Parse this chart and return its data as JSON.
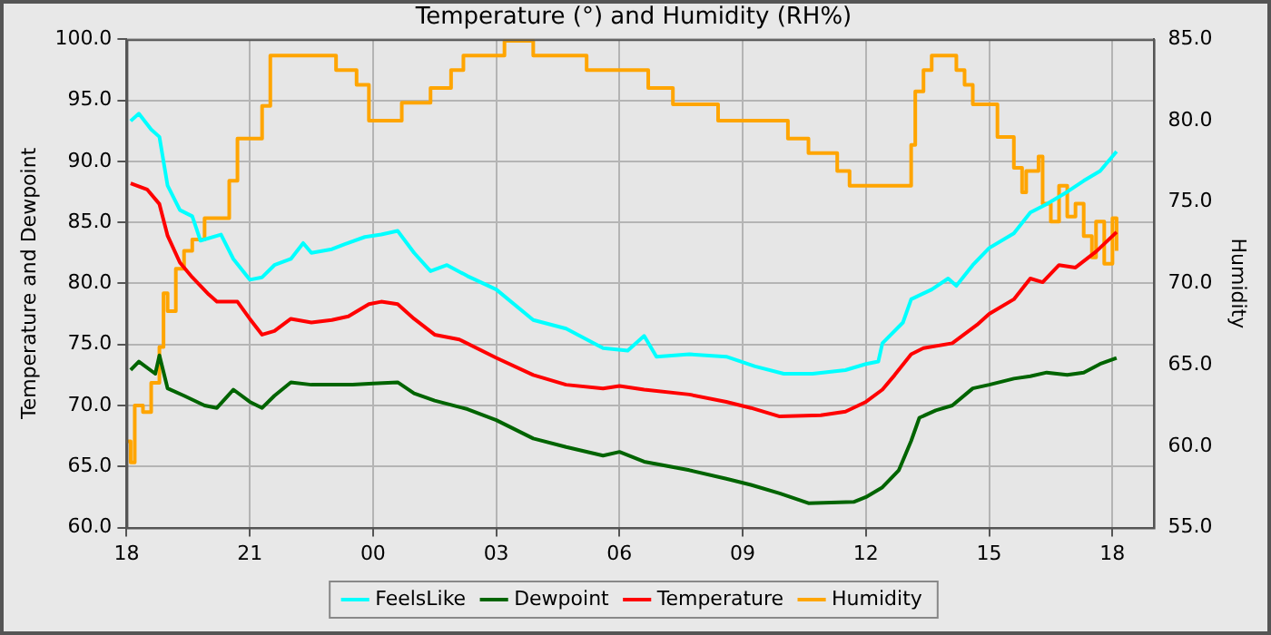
{
  "chart_data": {
    "type": "line",
    "title": "Temperature (°) and Humidity (RH%)",
    "ylabel": "Temperature and Dewpoint",
    "y2label": "Humidity",
    "xlim": [
      18,
      43
    ],
    "xticks": [
      {
        "value": 18,
        "label": "18"
      },
      {
        "value": 21,
        "label": "21"
      },
      {
        "value": 24,
        "label": "00"
      },
      {
        "value": 27,
        "label": "03"
      },
      {
        "value": 30,
        "label": "06"
      },
      {
        "value": 33,
        "label": "09"
      },
      {
        "value": 36,
        "label": "12"
      },
      {
        "value": 39,
        "label": "15"
      },
      {
        "value": 42,
        "label": "18"
      }
    ],
    "ylim": [
      60,
      100
    ],
    "yticks": [
      {
        "value": 60,
        "label": "60.0"
      },
      {
        "value": 65,
        "label": "65.0"
      },
      {
        "value": 70,
        "label": "70.0"
      },
      {
        "value": 75,
        "label": "75.0"
      },
      {
        "value": 80,
        "label": "80.0"
      },
      {
        "value": 85,
        "label": "85.0"
      },
      {
        "value": 90,
        "label": "90.0"
      },
      {
        "value": 95,
        "label": "95.0"
      },
      {
        "value": 100,
        "label": "100.0"
      }
    ],
    "y2lim": [
      55,
      85
    ],
    "y2ticks": [
      {
        "value": 55,
        "label": "55.0"
      },
      {
        "value": 60,
        "label": "60.0"
      },
      {
        "value": 65,
        "label": "65.0"
      },
      {
        "value": 70,
        "label": "70.0"
      },
      {
        "value": 75,
        "label": "75.0"
      },
      {
        "value": 80,
        "label": "80.0"
      },
      {
        "value": 85,
        "label": "85.0"
      }
    ],
    "grid": true,
    "legend": "bottom",
    "marker": "none",
    "line_style": "solid",
    "series": [
      {
        "name": "FeelsLike",
        "color": "#00ffff",
        "x": [
          18.1,
          18.3,
          18.6,
          18.8,
          19.0,
          19.3,
          19.6,
          19.8,
          20.3,
          20.6,
          21.0,
          21.3,
          21.6,
          22.0,
          22.3,
          22.5,
          23.0,
          23.3,
          23.8,
          24.2,
          24.6,
          25.0,
          25.4,
          25.8,
          26.3,
          27.0,
          27.9,
          28.7,
          29.6,
          30.2,
          30.6,
          30.9,
          31.7,
          32.6,
          33.3,
          34.0,
          34.7,
          35.5,
          36.0,
          36.3,
          36.4,
          36.9,
          37.1,
          37.6,
          38.0,
          38.2,
          38.6,
          39.0,
          39.6,
          40.0,
          40.4,
          40.9,
          41.3,
          41.7,
          42.1
        ],
        "values": [
          93.3,
          93.9,
          92.6,
          92,
          88,
          86,
          85.5,
          83.5,
          84,
          82,
          80.3,
          80.5,
          81.5,
          82,
          83.3,
          82.5,
          82.8,
          83.2,
          83.8,
          84,
          84.3,
          82.5,
          81,
          81.5,
          80.6,
          79.5,
          77,
          76.3,
          74.7,
          74.5,
          75.7,
          74,
          74.2,
          74,
          73.2,
          72.6,
          72.6,
          72.9,
          73.4,
          73.6,
          75.1,
          76.8,
          78.7,
          79.5,
          80.4,
          79.8,
          81.5,
          82.9,
          84.1,
          85.8,
          86.5,
          87.5,
          88.4,
          89.2,
          90.8
        ]
      },
      {
        "name": "Dewpoint",
        "color": "#006400",
        "x": [
          18.1,
          18.3,
          18.7,
          18.8,
          19.0,
          19.4,
          19.9,
          20.2,
          20.6,
          21.0,
          21.3,
          21.6,
          22.0,
          22.5,
          23.0,
          23.5,
          24.0,
          24.6,
          25.0,
          25.5,
          26.3,
          27.0,
          27.9,
          28.7,
          29.6,
          30.0,
          30.6,
          31.7,
          32.6,
          33.2,
          33.9,
          34.6,
          35.7,
          36.0,
          36.4,
          36.8,
          37.1,
          37.3,
          37.7,
          38.1,
          38.6,
          39.0,
          39.6,
          40.0,
          40.4,
          40.9,
          41.3,
          41.7,
          42.1
        ],
        "values": [
          72.9,
          73.6,
          72.6,
          74.1,
          71.4,
          70.8,
          70,
          69.8,
          71.3,
          70.3,
          69.8,
          70.8,
          71.9,
          71.7,
          71.7,
          71.7,
          71.8,
          71.9,
          71,
          70.4,
          69.7,
          68.8,
          67.3,
          66.6,
          65.9,
          66.2,
          65.4,
          64.7,
          64,
          63.5,
          62.8,
          62,
          62.1,
          62.5,
          63.3,
          64.7,
          67.1,
          69,
          69.6,
          70,
          71.4,
          71.7,
          72.2,
          72.4,
          72.7,
          72.5,
          72.7,
          73.4,
          73.9
        ]
      },
      {
        "name": "Temperature",
        "color": "#ff0000",
        "x": [
          18.1,
          18.5,
          18.8,
          19.0,
          19.3,
          19.6,
          20.0,
          20.2,
          20.7,
          21.0,
          21.3,
          21.6,
          22.0,
          22.5,
          23.0,
          23.4,
          23.9,
          24.2,
          24.6,
          25.0,
          25.5,
          26.1,
          27.0,
          27.9,
          28.7,
          29.6,
          30.0,
          30.6,
          31.7,
          32.6,
          33.2,
          33.9,
          34.9,
          35.5,
          36.0,
          36.4,
          36.7,
          37.1,
          37.4,
          38.1,
          38.7,
          39.0,
          39.6,
          40.0,
          40.3,
          40.7,
          41.1,
          41.6,
          42.1
        ],
        "values": [
          88.2,
          87.7,
          86.5,
          83.9,
          81.7,
          80.5,
          79.1,
          78.5,
          78.5,
          77.1,
          75.8,
          76.1,
          77.1,
          76.8,
          77,
          77.3,
          78.3,
          78.5,
          78.3,
          77.1,
          75.8,
          75.4,
          73.9,
          72.5,
          71.7,
          71.4,
          71.6,
          71.3,
          70.9,
          70.3,
          69.8,
          69.1,
          69.2,
          69.5,
          70.3,
          71.3,
          72.5,
          74.2,
          74.7,
          75.1,
          76.6,
          77.5,
          78.7,
          80.4,
          80.1,
          81.5,
          81.3,
          82.6,
          84.2
        ]
      },
      {
        "name": "Humidity",
        "color": "#ffa500",
        "type": "step",
        "axis": "y2",
        "x": [
          18.0,
          18.1,
          18.2,
          18.4,
          18.6,
          18.8,
          18.9,
          19.0,
          19.2,
          19.4,
          19.6,
          19.9,
          20.5,
          20.7,
          21.3,
          21.5,
          23.1,
          23.6,
          23.9,
          24.7,
          25.4,
          25.9,
          26.2,
          27.2,
          27.9,
          29.2,
          30.7,
          31.3,
          32.4,
          34.1,
          34.6,
          35.3,
          35.6,
          37.1,
          37.2,
          37.4,
          37.6,
          38.2,
          38.4,
          38.6,
          39.2,
          39.6,
          39.8,
          39.9,
          40.2,
          40.3,
          40.5,
          40.7,
          40.9,
          41.1,
          41.3,
          41.5,
          41.6,
          41.8,
          42.0,
          42.1
        ],
        "values": [
          60.3,
          59,
          62.5,
          62.1,
          63.9,
          66.1,
          69.4,
          68.3,
          70.9,
          72,
          72.7,
          74,
          76.3,
          78.9,
          80.9,
          84,
          83.1,
          82.2,
          80,
          81.1,
          82,
          83.1,
          84,
          84.9,
          84,
          83.1,
          82,
          81,
          80,
          78.9,
          78,
          76.9,
          76,
          78.5,
          81.8,
          83.1,
          84,
          83.1,
          82.2,
          81,
          79,
          77.1,
          75.6,
          76.9,
          77.8,
          74.9,
          73.8,
          76,
          74.1,
          74.9,
          72.9,
          71.6,
          73.8,
          71.2,
          74,
          72
        ]
      }
    ]
  }
}
